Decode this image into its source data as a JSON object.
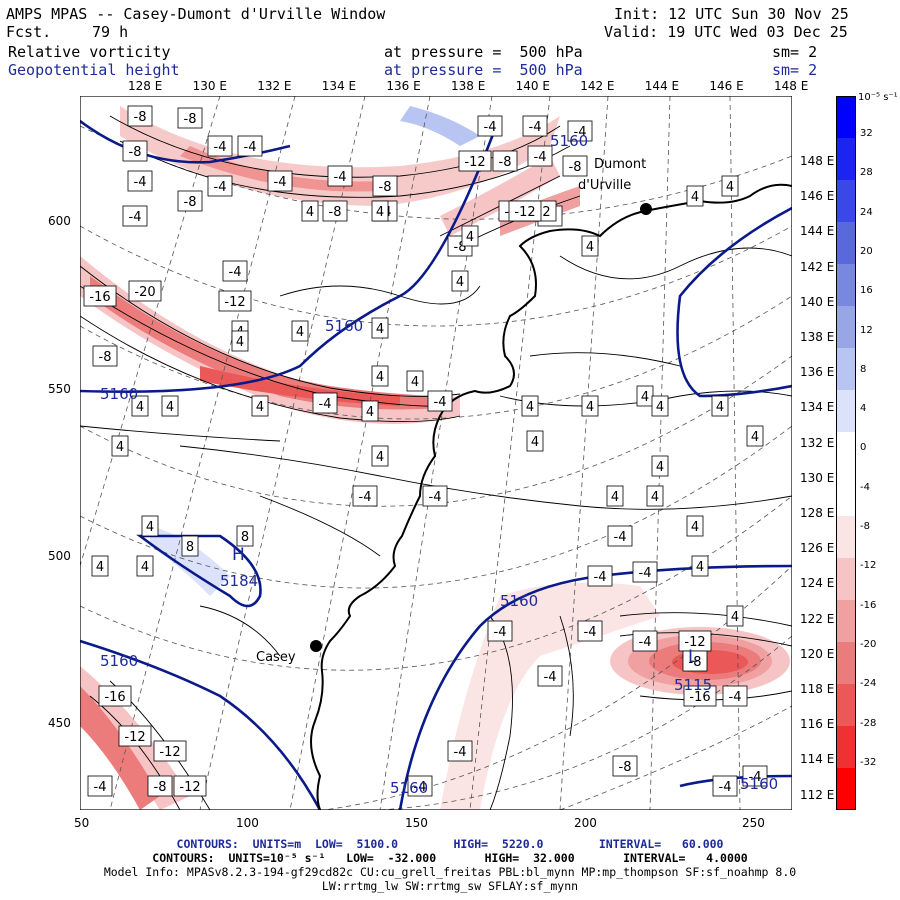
{
  "header": {
    "title": "AMPS MPAS -- Casey-Dumont d'Urville Window",
    "fcst_label": "Fcst.",
    "fcst_value": "79 h",
    "init": "Init: 12 UTC Sun 30 Nov 25",
    "valid": "Valid: 19 UTC Wed 03 Dec 25",
    "field1": "Relative vorticity",
    "field1_level": "at pressure =  500 hPa",
    "field1_sm": "sm= 2",
    "field2": "Geopotential height",
    "field2_level": "at pressure =  500 hPa",
    "field2_sm": "sm= 2"
  },
  "axes": {
    "top_lon_labels": [
      "128 E",
      "130 E",
      "132 E",
      "134 E",
      "136 E",
      "138 E",
      "140 E",
      "142 E",
      "144 E",
      "146 E",
      "148 E"
    ],
    "right_lon_labels": [
      "148 E",
      "146 E",
      "144 E",
      "142 E",
      "140 E",
      "138 E",
      "136 E",
      "134 E",
      "132 E",
      "130 E",
      "128 E",
      "126 E",
      "124 E",
      "122 E",
      "120 E",
      "118 E",
      "116 E",
      "114 E",
      "112 E"
    ],
    "left_grid_labels": [
      "600",
      "550",
      "500",
      "450"
    ],
    "bottom_grid_labels": [
      "50",
      "100",
      "150",
      "200",
      "250"
    ]
  },
  "colorbar": {
    "units": "10⁻⁵ s⁻¹",
    "labels": [
      "32",
      "28",
      "24",
      "20",
      "16",
      "12",
      "8",
      "4",
      "0",
      "-4",
      "-8",
      "-12",
      "-16",
      "-20",
      "-24",
      "-28",
      "-32"
    ],
    "colors": [
      "#0000ff",
      "#1c24f0",
      "#3a48e6",
      "#5968dc",
      "#7888e0",
      "#98a6e8",
      "#b8c4f2",
      "#dce2fa",
      "#ffffff",
      "#ffffff",
      "#fbe4e4",
      "#f6c4c4",
      "#f0a0a0",
      "#ec7c7c",
      "#ea5858",
      "#ee3232",
      "#ff0000"
    ]
  },
  "places": [
    {
      "name": "Dumont",
      "name2": "d'Urville"
    },
    {
      "name": "Casey"
    }
  ],
  "map_labels": {
    "height_contours": [
      "5160",
      "5160",
      "5160",
      "5160",
      "5160",
      "5160",
      "5160"
    ],
    "highs_lows": [
      "H",
      "5184",
      "L",
      "5115"
    ],
    "vorticity_boxes": [
      "-8",
      "-8",
      "-4",
      "-4",
      "-8",
      "-4",
      "-4",
      "-4",
      "-4",
      "-8",
      "-8",
      "-4",
      "-12",
      "-4",
      "-4",
      "-4",
      "-8",
      "-8",
      "-12",
      "-12",
      "-4",
      "-4",
      "-8",
      "4",
      "4",
      "4",
      "-4",
      "-12",
      "4",
      "4",
      "4",
      "-8",
      "-4",
      "4",
      "4",
      "4",
      "4",
      "4",
      "4",
      "-16",
      "-20",
      "-12",
      "-4",
      "4",
      "4",
      "-4",
      "4",
      "4",
      "4",
      "4",
      "4",
      "4",
      "4",
      "-8",
      "4",
      "4",
      "4",
      "4",
      "4",
      "4",
      "4",
      "-4",
      "4",
      "4",
      "-4",
      "4",
      "8",
      "8",
      "4",
      "4",
      "4",
      "4",
      "-4",
      "-4",
      "-4",
      "-4",
      "-4",
      "-4",
      "-12",
      "-16",
      "-4",
      "-8",
      "-16",
      "-12",
      "-12",
      "-4",
      "-4",
      "-12",
      "-8",
      "-8",
      "-4",
      "-4",
      "-4",
      "-4"
    ]
  },
  "footer": {
    "line1": "CONTOURS:  UNITS=m  LOW=  5100.0        HIGH=  5220.0        INTERVAL=   60.000",
    "line2": "CONTOURS:  UNITS=10⁻⁵ s⁻¹   LOW=  -32.000       HIGH=  32.000       INTERVAL=   4.0000",
    "line3": "Model Info: MPASv8.2.3-194-gf29cd82c CU:cu_grell_freitas PBL:bl_mynn MP:mp_thompson SF:sf_noahmp 8.0",
    "line4": "LW:rrtmg_lw SW:rrtmg_sw SFLAY:sf_mynn"
  }
}
